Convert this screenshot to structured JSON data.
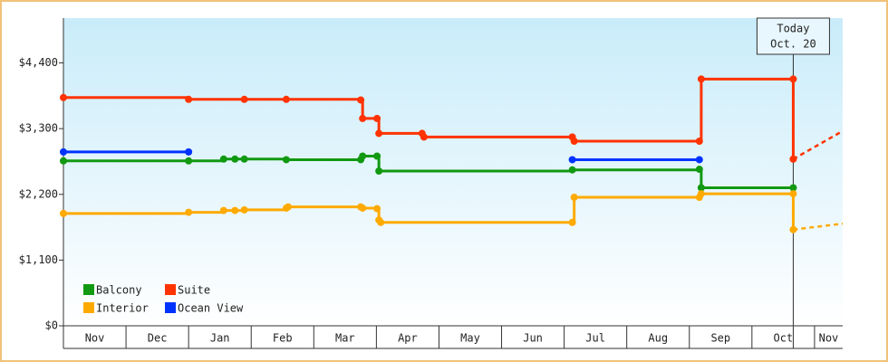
{
  "chart_data": {
    "type": "step-line",
    "xlim": [
      0,
      12.45
    ],
    "xticks": [
      {
        "value": 0,
        "label": "Nov"
      },
      {
        "value": 1,
        "label": "Dec"
      },
      {
        "value": 2,
        "label": "Jan"
      },
      {
        "value": 3,
        "label": "Feb"
      },
      {
        "value": 4,
        "label": "Mar"
      },
      {
        "value": 5,
        "label": "Apr"
      },
      {
        "value": 6,
        "label": "May"
      },
      {
        "value": 7,
        "label": "Jun"
      },
      {
        "value": 8,
        "label": "Jul"
      },
      {
        "value": 9,
        "label": "Aug"
      },
      {
        "value": 10,
        "label": "Sep"
      },
      {
        "value": 11,
        "label": "Oct"
      },
      {
        "value": 12,
        "label": "Nov"
      }
    ],
    "ylim": [
      0,
      5150
    ],
    "yticks": [
      {
        "value": 0,
        "label": "$0"
      },
      {
        "value": 1100,
        "label": "$1,100"
      },
      {
        "value": 2200,
        "label": "$2,200"
      },
      {
        "value": 3300,
        "label": "$3,300"
      },
      {
        "value": 4400,
        "label": "$4,400"
      }
    ],
    "today": {
      "x": 11.66,
      "label": "Today",
      "date": "Oct. 20"
    },
    "legend": "lower left",
    "series": [
      {
        "name": "Balcony",
        "color": "#119911",
        "x": [
          0,
          2.0,
          2.56,
          2.74,
          2.89,
          3.56,
          4.75,
          4.78,
          5.01,
          5.04,
          8.13,
          10.16,
          10.19,
          11.66
        ],
        "values": [
          2760,
          2760,
          2790,
          2790,
          2790,
          2780,
          2780,
          2840,
          2840,
          2590,
          2610,
          2620,
          2310,
          2310
        ]
      },
      {
        "name": "Suite",
        "color": "#ff3300",
        "x": [
          0,
          2.0,
          2.89,
          3.56,
          4.75,
          4.78,
          5.01,
          5.04,
          5.73,
          5.76,
          8.13,
          8.16,
          10.16,
          10.19,
          11.66,
          11.66,
          12.45
        ],
        "values": [
          3820,
          3790,
          3790,
          3790,
          3780,
          3470,
          3470,
          3220,
          3220,
          3160,
          3160,
          3090,
          3090,
          4130,
          4130,
          2790,
          3260
        ]
      },
      {
        "name": "Interior",
        "color": "#ffaa00",
        "x": [
          0,
          2.0,
          2.56,
          2.74,
          2.89,
          3.56,
          3.59,
          4.75,
          4.78,
          5.01,
          5.04,
          5.07,
          8.13,
          8.16,
          10.16,
          10.19,
          11.66,
          11.66,
          12.45
        ],
        "values": [
          1880,
          1900,
          1930,
          1930,
          1940,
          1970,
          1990,
          1990,
          1970,
          1960,
          1770,
          1730,
          1730,
          2150,
          2150,
          2210,
          2210,
          1610,
          1710
        ]
      },
      {
        "name": "Ocean View",
        "color": "#0033ff",
        "x": [
          0,
          2.0,
          null,
          8.13,
          10.16
        ],
        "values": [
          2910,
          2910,
          null,
          2780,
          2780
        ]
      }
    ]
  }
}
